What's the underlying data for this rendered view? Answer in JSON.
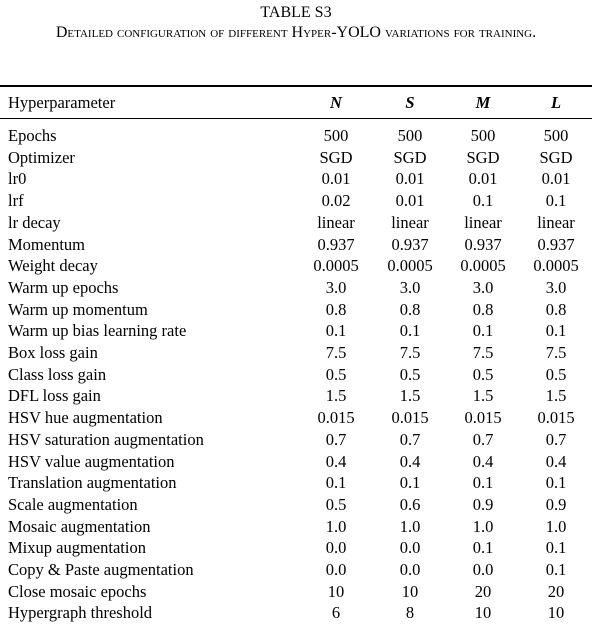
{
  "table": {
    "title": "TABLE S3",
    "caption": "Detailed configuration of different Hyper-YOLO variations for training.",
    "header": [
      "Hyperparameter",
      "N",
      "S",
      "M",
      "L"
    ],
    "rows": [
      [
        "Epochs",
        "500",
        "500",
        "500",
        "500"
      ],
      [
        "Optimizer",
        "SGD",
        "SGD",
        "SGD",
        "SGD"
      ],
      [
        "lr0",
        "0.01",
        "0.01",
        "0.01",
        "0.01"
      ],
      [
        "lrf",
        "0.02",
        "0.01",
        "0.1",
        "0.1"
      ],
      [
        "lr decay",
        "linear",
        "linear",
        "linear",
        "linear"
      ],
      [
        "Momentum",
        "0.937",
        "0.937",
        "0.937",
        "0.937"
      ],
      [
        "Weight decay",
        "0.0005",
        "0.0005",
        "0.0005",
        "0.0005"
      ],
      [
        "Warm up epochs",
        "3.0",
        "3.0",
        "3.0",
        "3.0"
      ],
      [
        "Warm up momentum",
        "0.8",
        "0.8",
        "0.8",
        "0.8"
      ],
      [
        "Warm up bias learning rate",
        "0.1",
        "0.1",
        "0.1",
        "0.1"
      ],
      [
        "Box loss gain",
        "7.5",
        "7.5",
        "7.5",
        "7.5"
      ],
      [
        "Class loss gain",
        "0.5",
        "0.5",
        "0.5",
        "0.5"
      ],
      [
        "DFL loss gain",
        "1.5",
        "1.5",
        "1.5",
        "1.5"
      ],
      [
        "HSV hue augmentation",
        "0.015",
        "0.015",
        "0.015",
        "0.015"
      ],
      [
        "HSV saturation augmentation",
        "0.7",
        "0.7",
        "0.7",
        "0.7"
      ],
      [
        "HSV value augmentation",
        "0.4",
        "0.4",
        "0.4",
        "0.4"
      ],
      [
        "Translation augmentation",
        "0.1",
        "0.1",
        "0.1",
        "0.1"
      ],
      [
        "Scale augmentation",
        "0.5",
        "0.6",
        "0.9",
        "0.9"
      ],
      [
        "Mosaic augmentation",
        "1.0",
        "1.0",
        "1.0",
        "1.0"
      ],
      [
        "Mixup augmentation",
        "0.0",
        "0.0",
        "0.1",
        "0.1"
      ],
      [
        "Copy & Paste augmentation",
        "0.0",
        "0.0",
        "0.0",
        "0.1"
      ],
      [
        "Close mosaic epochs",
        "10",
        "10",
        "20",
        "20"
      ],
      [
        "Hypergraph threshold",
        "6",
        "8",
        "10",
        "10"
      ]
    ]
  }
}
